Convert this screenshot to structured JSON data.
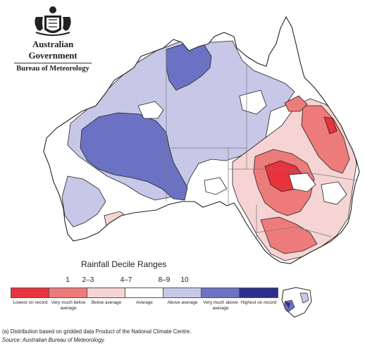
{
  "header": {
    "government": "Australian Government",
    "bureau": "Bureau of Meteorology"
  },
  "legend": {
    "title": "Rainfall Decile Ranges",
    "ticks": [
      "1",
      "2–3",
      "4–7",
      "8–9",
      "10"
    ],
    "categories": [
      {
        "label": "Lowest on record",
        "color": "#e8333c"
      },
      {
        "label": "Very much below average",
        "color": "#ee7b7b"
      },
      {
        "label": "Below average",
        "color": "#f6d4d4"
      },
      {
        "label": "Average",
        "color": "#ffffff"
      },
      {
        "label": "Above average",
        "color": "#c7c8e8"
      },
      {
        "label": "Very much above average",
        "color": "#6c72c3"
      },
      {
        "label": "Highest on record",
        "color": "#2e2f8c"
      }
    ]
  },
  "footnote": "(a) Distribution based on gridded data Product of the National Climate Centre.",
  "source": "Source: Australian Bureau of Meteorology."
}
